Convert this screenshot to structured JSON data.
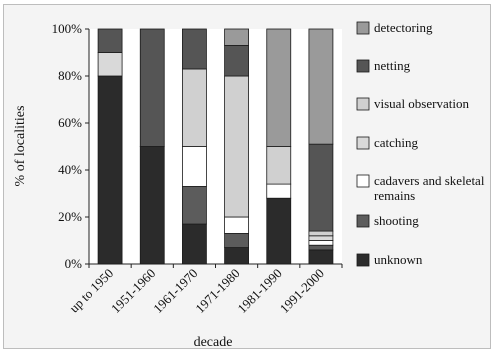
{
  "chart_data": {
    "type": "bar",
    "stacked": true,
    "title": "",
    "xlabel": "decade",
    "ylabel": "% of localities",
    "ylim": [
      0,
      100
    ],
    "yticks": [
      "0%",
      "20%",
      "40%",
      "60%",
      "80%",
      "100%"
    ],
    "categories": [
      "up to 1950",
      "1951-1960",
      "1961-1970",
      "1971-1980",
      "1981-1990",
      "1991-2000"
    ],
    "series": [
      {
        "name": "unknown",
        "color": "#2b2b2b",
        "values": [
          80,
          50,
          17,
          7,
          28,
          6
        ]
      },
      {
        "name": "shooting",
        "color": "#5c5c5c",
        "values": [
          0,
          0,
          16,
          6,
          0,
          2
        ]
      },
      {
        "name": "cadavers and skeletal remains",
        "color": "#ffffff",
        "values": [
          0,
          0,
          17,
          7,
          6,
          2
        ]
      },
      {
        "name": "catching",
        "color": "#d9d9d9",
        "values": [
          10,
          0,
          0,
          0,
          0,
          2
        ]
      },
      {
        "name": "visual observation",
        "color": "#d0d0d0",
        "values": [
          0,
          0,
          33,
          60,
          16,
          2
        ]
      },
      {
        "name": "netting",
        "color": "#555555",
        "values": [
          10,
          50,
          17,
          13,
          0,
          37
        ]
      },
      {
        "name": "detectoring",
        "color": "#9a9a9a",
        "values": [
          0,
          0,
          0,
          7,
          50,
          49
        ]
      }
    ],
    "legend_position": "right",
    "legend_order": [
      "detectoring",
      "netting",
      "visual observation",
      "catching",
      "cadavers and skeletal remains",
      "shooting",
      "unknown"
    ]
  }
}
